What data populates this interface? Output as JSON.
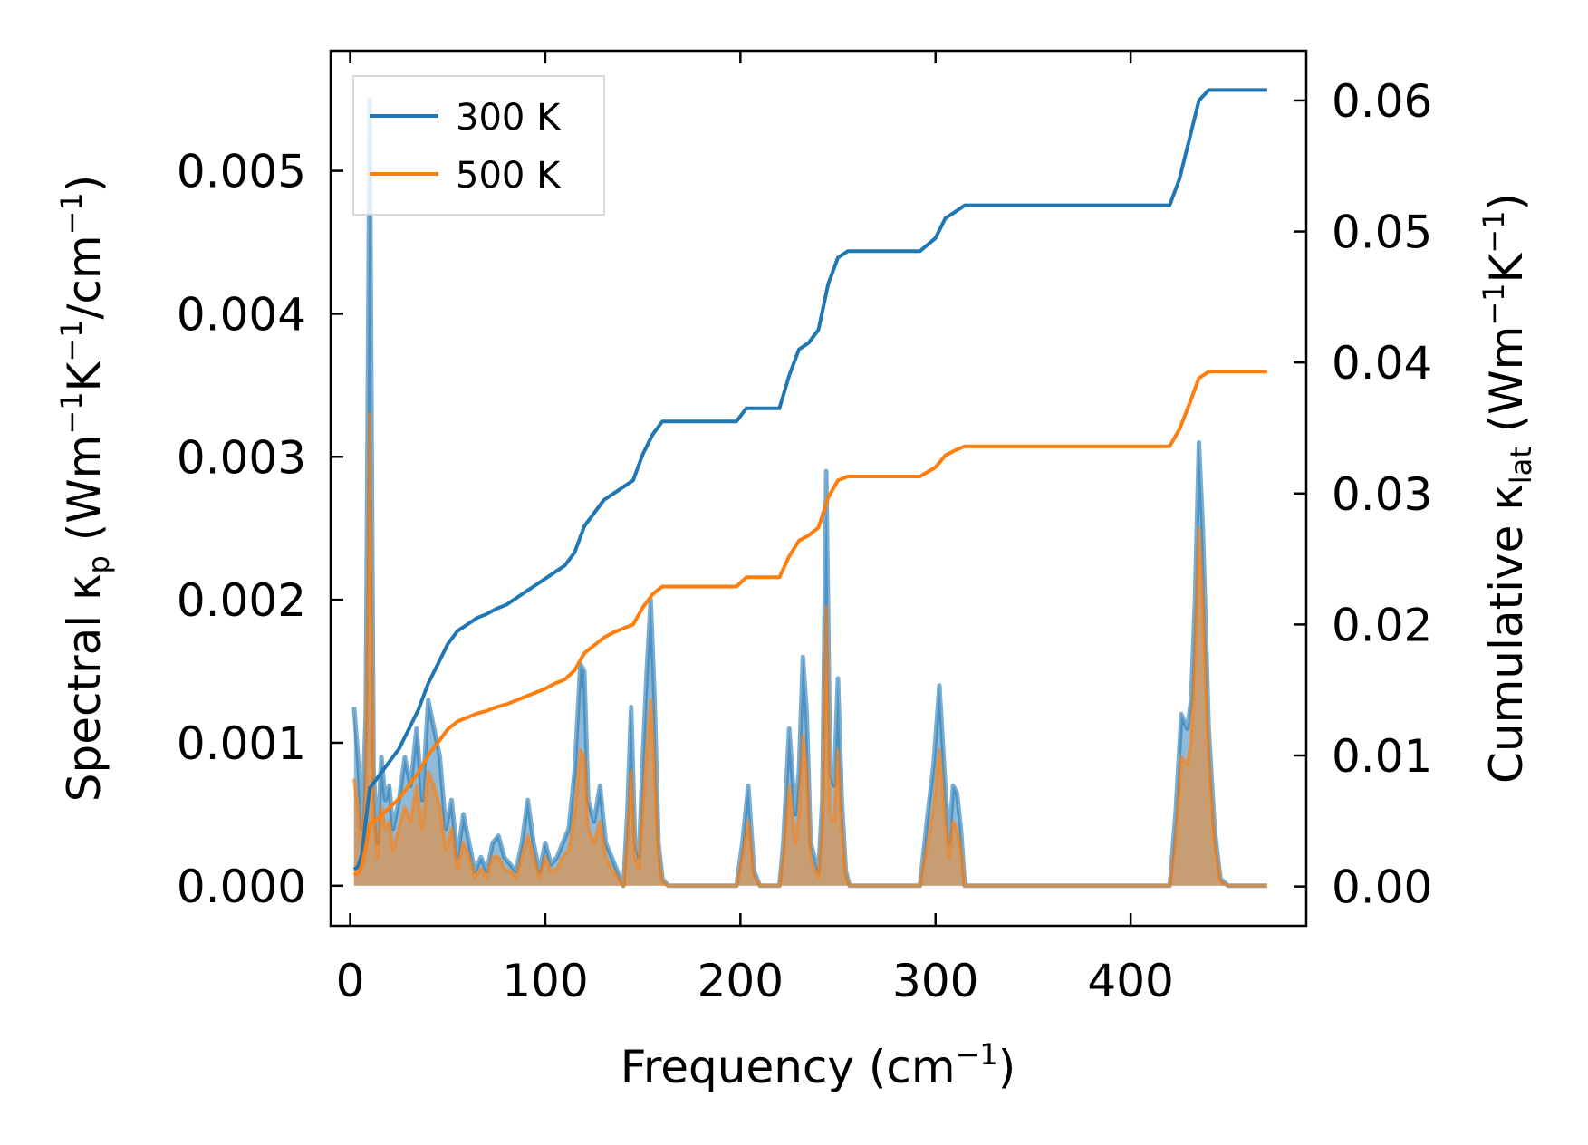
{
  "chart_data": {
    "type": "line",
    "x_axis": {
      "label_main": "Frequency (cm",
      "label_sup": "−1",
      "label_end": ")",
      "lim": [
        -10,
        490
      ],
      "ticks": [
        0,
        100,
        200,
        300,
        400
      ],
      "tick_labels": [
        "0",
        "100",
        "200",
        "300",
        "400"
      ]
    },
    "y_left": {
      "label_parts": [
        "Spectral κ",
        "p",
        " (Wm",
        "−1",
        "K",
        "−1",
        "/cm",
        "−1",
        ")"
      ],
      "lim": [
        -0.00028,
        0.00584
      ],
      "ticks": [
        0.0,
        0.001,
        0.002,
        0.003,
        0.004,
        0.005
      ],
      "tick_labels": [
        "0.000",
        "0.001",
        "0.002",
        "0.003",
        "0.004",
        "0.005"
      ]
    },
    "y_right": {
      "label_parts": [
        "Cumulative κ",
        "lat",
        " (Wm",
        "−1",
        "K",
        "−1",
        ")"
      ],
      "lim": [
        -0.003,
        0.0638
      ],
      "ticks": [
        0.0,
        0.01,
        0.02,
        0.03,
        0.04,
        0.05,
        0.06
      ],
      "tick_labels": [
        "0.00",
        "0.01",
        "0.02",
        "0.03",
        "0.04",
        "0.05",
        "0.06"
      ]
    },
    "legend": {
      "placement": "upper-left",
      "entries": [
        "300 K",
        "500 K"
      ]
    },
    "spectral_300K": {
      "name": "300 K",
      "color": "#1f77b4",
      "x": [
        2,
        4,
        6,
        8,
        10,
        12,
        14,
        16,
        18,
        20,
        22,
        25,
        28,
        31,
        34,
        37,
        40,
        43,
        46,
        49,
        52,
        55,
        58,
        61,
        64,
        67,
        70,
        73,
        76,
        79,
        82,
        85,
        88,
        91,
        94,
        97,
        100,
        103,
        106,
        109,
        112,
        115,
        118,
        120,
        122,
        125,
        128,
        131,
        134,
        137,
        140,
        142,
        144,
        146,
        148,
        150,
        152,
        154,
        156,
        158,
        160,
        163,
        166,
        170,
        180,
        190,
        198,
        201,
        204,
        207,
        210,
        215,
        220,
        222,
        225,
        228,
        230,
        232,
        234,
        236,
        238,
        240,
        242,
        244,
        246,
        248,
        250,
        252,
        254,
        256,
        260,
        280,
        292,
        296,
        299,
        302,
        305,
        307,
        309,
        311,
        313,
        315,
        318,
        330,
        380,
        420,
        423,
        426,
        429,
        431,
        433,
        435,
        437,
        440,
        443,
        446,
        450,
        470
      ],
      "values": [
        0.00125,
        0.0009,
        0.0004,
        0.0012,
        0.0055,
        0.0008,
        0.0003,
        0.0009,
        0.0006,
        0.0007,
        0.0004,
        0.0006,
        0.0009,
        0.0007,
        0.0011,
        0.0006,
        0.0013,
        0.0011,
        0.0009,
        0.0004,
        0.0006,
        0.0002,
        0.0005,
        0.0003,
        0.0001,
        0.0002,
        0.0001,
        0.0003,
        0.00035,
        0.0002,
        0.00015,
        0.0001,
        0.0003,
        0.0006,
        0.0003,
        0.0001,
        0.0003,
        0.00015,
        0.0002,
        0.0003,
        0.0004,
        0.0008,
        0.00155,
        0.0015,
        0.0006,
        0.00045,
        0.0007,
        0.0003,
        0.0002,
        0.0001,
        0.0,
        0.0005,
        0.00125,
        0.0003,
        0.0002,
        0.0009,
        0.0015,
        0.002,
        0.0013,
        0.0003,
        5e-05,
        0.0,
        0.0,
        0.0,
        0.0,
        0.0,
        0.0,
        0.0003,
        0.0007,
        0.0001,
        0.0,
        0.0,
        0.0,
        0.0003,
        0.0011,
        0.0005,
        0.0008,
        0.0016,
        0.0012,
        0.0003,
        0.0002,
        0.0001,
        0.0006,
        0.0029,
        0.0008,
        0.0007,
        0.00145,
        0.0006,
        0.0001,
        0.0,
        0.0,
        0.0,
        0.0,
        0.0005,
        0.00085,
        0.0014,
        0.0007,
        0.0003,
        0.0007,
        0.00065,
        0.0004,
        0.0,
        0.0,
        0.0,
        0.0,
        0.0,
        0.0005,
        0.0012,
        0.0011,
        0.0013,
        0.002,
        0.0031,
        0.0025,
        0.0011,
        0.0004,
        5e-05,
        0.0,
        0.0
      ]
    },
    "spectral_500K": {
      "name": "500 K",
      "color": "#ff7f0e",
      "x": [
        2,
        4,
        6,
        8,
        10,
        12,
        14,
        16,
        18,
        20,
        22,
        25,
        28,
        31,
        34,
        37,
        40,
        43,
        46,
        49,
        52,
        55,
        58,
        61,
        64,
        67,
        70,
        73,
        76,
        79,
        82,
        85,
        88,
        91,
        94,
        97,
        100,
        103,
        106,
        109,
        112,
        115,
        118,
        120,
        122,
        125,
        128,
        131,
        134,
        137,
        140,
        142,
        144,
        146,
        148,
        150,
        152,
        154,
        156,
        158,
        160,
        163,
        166,
        170,
        180,
        190,
        198,
        201,
        204,
        207,
        210,
        215,
        220,
        222,
        225,
        228,
        230,
        232,
        234,
        236,
        238,
        240,
        242,
        244,
        246,
        248,
        250,
        252,
        254,
        256,
        260,
        280,
        292,
        296,
        299,
        302,
        305,
        307,
        309,
        311,
        313,
        315,
        318,
        330,
        380,
        420,
        423,
        426,
        429,
        431,
        433,
        435,
        437,
        440,
        443,
        446,
        450,
        470
      ],
      "values": [
        0.00075,
        0.00055,
        0.00025,
        0.0007,
        0.0033,
        0.0005,
        0.0002,
        0.00055,
        0.0004,
        0.00045,
        0.00025,
        0.0004,
        0.00055,
        0.00045,
        0.0007,
        0.0004,
        0.0008,
        0.0007,
        0.00055,
        0.00025,
        0.0004,
        0.00012,
        0.0003,
        0.0002,
        6e-05,
        0.00012,
        6e-05,
        0.0002,
        0.0002,
        0.00012,
        0.0001,
        6e-05,
        0.0002,
        0.00035,
        0.0002,
        6e-05,
        0.0002,
        0.0001,
        0.00012,
        0.0002,
        0.00025,
        0.0005,
        0.00095,
        0.0009,
        0.0004,
        0.0003,
        0.00045,
        0.0002,
        0.00012,
        6e-05,
        0.0,
        0.0003,
        0.0008,
        0.0002,
        0.00012,
        0.00055,
        0.00095,
        0.0013,
        0.0008,
        0.0002,
        3e-05,
        0.0,
        0.0,
        0.0,
        0.0,
        0.0,
        0.0,
        0.0002,
        0.00045,
        6e-05,
        0.0,
        0.0,
        0.0,
        0.0002,
        0.0007,
        0.0003,
        0.0005,
        0.00105,
        0.0008,
        0.0002,
        0.00012,
        6e-05,
        0.0004,
        0.00195,
        0.0005,
        0.00045,
        0.00095,
        0.0004,
        6e-05,
        0.0,
        0.0,
        0.0,
        0.0,
        0.0003,
        0.00055,
        0.00095,
        0.00045,
        0.0002,
        0.00045,
        0.0004,
        0.00025,
        0.0,
        0.0,
        0.0,
        0.0,
        0.0,
        0.0003,
        0.0009,
        0.00085,
        0.001,
        0.0016,
        0.0025,
        0.002,
        0.0009,
        0.0003,
        3e-05,
        0.0,
        0.0
      ]
    },
    "cumulative_300K": {
      "name": "300 K",
      "color": "#1f77b4",
      "x": [
        2,
        4,
        6,
        8,
        10,
        15,
        20,
        25,
        30,
        35,
        40,
        45,
        50,
        55,
        60,
        65,
        70,
        75,
        80,
        85,
        90,
        95,
        100,
        105,
        110,
        115,
        120,
        125,
        130,
        135,
        140,
        145,
        150,
        155,
        160,
        165,
        170,
        180,
        190,
        198,
        203,
        208,
        215,
        220,
        225,
        230,
        235,
        240,
        245,
        250,
        255,
        260,
        280,
        292,
        300,
        305,
        310,
        315,
        330,
        380,
        420,
        425,
        430,
        435,
        440,
        445,
        470
      ],
      "values": [
        0.0013,
        0.0015,
        0.0025,
        0.005,
        0.0075,
        0.0085,
        0.0095,
        0.0105,
        0.012,
        0.0135,
        0.0155,
        0.017,
        0.0185,
        0.0195,
        0.02,
        0.0205,
        0.0208,
        0.0212,
        0.0215,
        0.022,
        0.0225,
        0.023,
        0.0235,
        0.024,
        0.0245,
        0.0255,
        0.0275,
        0.0285,
        0.0295,
        0.03,
        0.0305,
        0.031,
        0.033,
        0.0345,
        0.0355,
        0.0355,
        0.0355,
        0.0355,
        0.0355,
        0.0355,
        0.0365,
        0.0365,
        0.0365,
        0.0365,
        0.039,
        0.041,
        0.0415,
        0.0425,
        0.046,
        0.048,
        0.0485,
        0.0485,
        0.0485,
        0.0485,
        0.0495,
        0.051,
        0.0515,
        0.052,
        0.052,
        0.052,
        0.052,
        0.054,
        0.057,
        0.06,
        0.0608,
        0.0608,
        0.0608
      ]
    },
    "cumulative_500K": {
      "name": "500 K",
      "color": "#ff7f0e",
      "x": [
        2,
        4,
        6,
        8,
        10,
        15,
        20,
        25,
        30,
        35,
        40,
        45,
        50,
        55,
        60,
        65,
        70,
        75,
        80,
        85,
        90,
        95,
        100,
        105,
        110,
        115,
        120,
        125,
        130,
        135,
        140,
        145,
        150,
        155,
        160,
        165,
        170,
        180,
        190,
        198,
        203,
        208,
        215,
        220,
        225,
        230,
        235,
        240,
        245,
        250,
        255,
        260,
        280,
        292,
        300,
        305,
        310,
        315,
        330,
        380,
        420,
        425,
        430,
        435,
        440,
        445,
        470
      ],
      "values": [
        0.0009,
        0.001,
        0.0016,
        0.003,
        0.0047,
        0.0053,
        0.006,
        0.0067,
        0.0077,
        0.0087,
        0.01,
        0.011,
        0.012,
        0.0126,
        0.0129,
        0.0132,
        0.0134,
        0.0137,
        0.0139,
        0.0142,
        0.0145,
        0.0148,
        0.0151,
        0.0155,
        0.0158,
        0.0165,
        0.0178,
        0.0184,
        0.019,
        0.0194,
        0.0197,
        0.02,
        0.0213,
        0.0223,
        0.0229,
        0.0229,
        0.0229,
        0.0229,
        0.0229,
        0.0229,
        0.0236,
        0.0236,
        0.0236,
        0.0236,
        0.0252,
        0.0264,
        0.0268,
        0.0274,
        0.0297,
        0.031,
        0.0313,
        0.0313,
        0.0313,
        0.0313,
        0.032,
        0.0329,
        0.0333,
        0.0336,
        0.0336,
        0.0336,
        0.0336,
        0.0349,
        0.0368,
        0.0388,
        0.0393,
        0.0393,
        0.0393
      ]
    }
  }
}
